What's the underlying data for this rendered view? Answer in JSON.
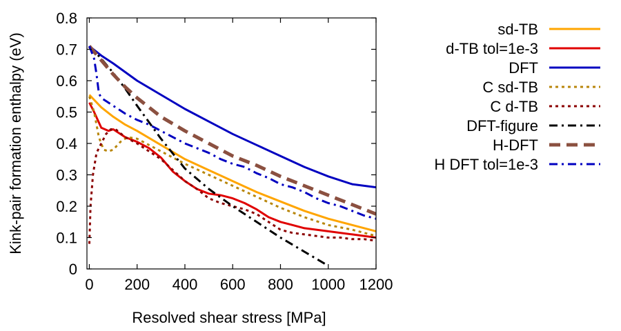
{
  "chart_data": {
    "type": "line",
    "xlabel": "Resolved shear stress [MPa]",
    "ylabel": "Kink-pair formation enthalpy (eV)",
    "xlim": [
      -10,
      1200
    ],
    "ylim": [
      0,
      0.8
    ],
    "xticks": [
      0,
      200,
      400,
      600,
      800,
      1000,
      1200
    ],
    "xtick_labels": [
      "0",
      "200",
      "400",
      "600",
      "800",
      "1000",
      "1200"
    ],
    "yticks": [
      0,
      0.1,
      0.2,
      0.3,
      0.4,
      0.5,
      0.6,
      0.7,
      0.8
    ],
    "ytick_labels": [
      "0",
      "0.1",
      "0.2",
      "0.3",
      "0.4",
      "0.5",
      "0.6",
      "0.7",
      "0.8"
    ],
    "grid": false,
    "legend_position": "right, outside plot",
    "series": [
      {
        "name": "sd-TB",
        "color": "#ffa500",
        "style": "solid",
        "x": [
          0,
          50,
          100,
          150,
          200,
          300,
          400,
          500,
          600,
          700,
          800,
          900,
          1000,
          1100,
          1200
        ],
        "y": [
          0.555,
          0.515,
          0.485,
          0.46,
          0.44,
          0.395,
          0.35,
          0.315,
          0.28,
          0.245,
          0.215,
          0.185,
          0.16,
          0.14,
          0.12
        ]
      },
      {
        "name": "d-TB tol=1e-3",
        "color": "#e00000",
        "style": "solid",
        "x": [
          0,
          20,
          50,
          80,
          100,
          150,
          200,
          250,
          300,
          350,
          400,
          450,
          500,
          550,
          600,
          650,
          700,
          750,
          800,
          850,
          900,
          1000,
          1100,
          1200
        ],
        "y": [
          0.53,
          0.5,
          0.45,
          0.44,
          0.445,
          0.42,
          0.405,
          0.385,
          0.355,
          0.31,
          0.28,
          0.255,
          0.24,
          0.235,
          0.225,
          0.21,
          0.19,
          0.165,
          0.15,
          0.14,
          0.13,
          0.12,
          0.11,
          0.1
        ]
      },
      {
        "name": "DFT",
        "color": "#0000c0",
        "style": "solid",
        "x": [
          0,
          50,
          100,
          200,
          300,
          400,
          500,
          600,
          700,
          800,
          900,
          1000,
          1100,
          1200
        ],
        "y": [
          0.71,
          0.68,
          0.655,
          0.6,
          0.555,
          0.51,
          0.47,
          0.43,
          0.395,
          0.36,
          0.325,
          0.295,
          0.27,
          0.26
        ]
      },
      {
        "name": "C sd-TB",
        "color": "#b8860b",
        "style": "dotted",
        "x": [
          0,
          20,
          40,
          60,
          80,
          100,
          130,
          160,
          200,
          250,
          300,
          400,
          500,
          600,
          700,
          800,
          900,
          1000,
          1100,
          1200
        ],
        "y": [
          0.55,
          0.5,
          0.42,
          0.38,
          0.375,
          0.38,
          0.405,
          0.42,
          0.415,
          0.395,
          0.375,
          0.335,
          0.3,
          0.265,
          0.23,
          0.195,
          0.165,
          0.14,
          0.125,
          0.105
        ]
      },
      {
        "name": "C d-TB",
        "color": "#8b0000",
        "style": "dotted",
        "x": [
          0,
          5,
          15,
          30,
          50,
          70,
          90,
          110,
          150,
          200,
          250,
          300,
          350,
          400,
          450,
          500,
          550,
          600,
          650,
          700,
          750,
          800,
          850,
          900,
          950,
          1000,
          1050,
          1100,
          1150,
          1200
        ],
        "y": [
          0.08,
          0.2,
          0.3,
          0.37,
          0.4,
          0.43,
          0.445,
          0.445,
          0.42,
          0.4,
          0.375,
          0.35,
          0.315,
          0.28,
          0.255,
          0.225,
          0.21,
          0.2,
          0.19,
          0.175,
          0.15,
          0.125,
          0.115,
          0.11,
          0.105,
          0.1,
          0.1,
          0.095,
          0.095,
          0.09
        ]
      },
      {
        "name": "DFT-figure",
        "color": "#000000",
        "style": "dashdot",
        "x": [
          0,
          50,
          100,
          150,
          200,
          300,
          400,
          500,
          600,
          700,
          800,
          900,
          1000
        ],
        "y": [
          0.71,
          0.67,
          0.625,
          0.575,
          0.52,
          0.415,
          0.32,
          0.255,
          0.2,
          0.15,
          0.1,
          0.055,
          0.01
        ]
      },
      {
        "name": "H-DFT",
        "color": "#8b5040",
        "style": "dashed",
        "x": [
          0,
          50,
          100,
          150,
          200,
          300,
          400,
          500,
          600,
          700,
          800,
          900,
          1000,
          1100,
          1200
        ],
        "y": [
          0.71,
          0.665,
          0.62,
          0.58,
          0.545,
          0.485,
          0.44,
          0.4,
          0.36,
          0.33,
          0.295,
          0.265,
          0.235,
          0.205,
          0.175
        ]
      },
      {
        "name": "H DFT tol=1e-3",
        "color": "#0000c0",
        "style": "dashdot",
        "x": [
          0,
          20,
          30,
          40,
          50,
          100,
          150,
          200,
          250,
          300,
          350,
          400,
          450,
          500,
          550,
          600,
          650,
          700,
          750,
          800,
          850,
          900,
          950,
          1000,
          1050,
          1100,
          1150,
          1200
        ],
        "y": [
          0.71,
          0.67,
          0.62,
          0.56,
          0.545,
          0.52,
          0.495,
          0.475,
          0.46,
          0.44,
          0.42,
          0.4,
          0.385,
          0.37,
          0.35,
          0.335,
          0.325,
          0.305,
          0.29,
          0.27,
          0.26,
          0.245,
          0.225,
          0.21,
          0.2,
          0.185,
          0.17,
          0.16
        ]
      }
    ]
  }
}
